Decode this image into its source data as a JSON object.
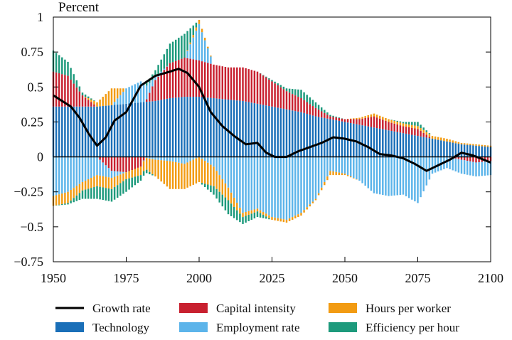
{
  "chart_data": {
    "type": "bar",
    "title": "",
    "ylabel": "Percent",
    "xlabel": "",
    "xlim": [
      1950,
      2100
    ],
    "ylim": [
      -0.75,
      1.0
    ],
    "x_ticks": [
      1950,
      1975,
      2000,
      2025,
      2050,
      2075,
      2100
    ],
    "y_ticks": [
      1,
      0.75,
      0.5,
      0.25,
      0,
      -0.25,
      -0.5,
      -0.75
    ],
    "x_tick_labels": [
      "1950",
      "1975",
      "2000",
      "2025",
      "2050",
      "2075",
      "2100"
    ],
    "y_tick_labels": [
      "1",
      "0.75",
      "0.5",
      "0.25",
      "0",
      "−0.25",
      "−0.5",
      "−0.75"
    ],
    "stacked": true,
    "legend_position": "bottom",
    "legend": [
      {
        "name": "Growth rate",
        "kind": "line",
        "color": "#000000"
      },
      {
        "name": "Capital intensity",
        "kind": "bar",
        "color": "#c8202f"
      },
      {
        "name": "Hours per worker",
        "kind": "bar",
        "color": "#f29b12"
      },
      {
        "name": "Technology",
        "kind": "bar",
        "color": "#1a6fb8"
      },
      {
        "name": "Employment rate",
        "kind": "bar",
        "color": "#5cb4ea"
      },
      {
        "name": "Efficiency per hour",
        "kind": "bar",
        "color": "#1d9a7c"
      }
    ],
    "series_keys": {
      "technology": "Technology",
      "capital": "Capital intensity",
      "hours": "Hours per worker",
      "employment": "Employment rate",
      "efficiency": "Efficiency per hour",
      "growth": "Growth rate"
    },
    "x": [
      1950,
      1955,
      1960,
      1965,
      1970,
      1975,
      1980,
      1985,
      1990,
      1995,
      2000,
      2005,
      2010,
      2015,
      2020,
      2025,
      2030,
      2035,
      2040,
      2045,
      2050,
      2055,
      2060,
      2065,
      2070,
      2075,
      2080,
      2085,
      2090,
      2095,
      2100
    ],
    "technology": [
      0.36,
      0.36,
      0.36,
      0.36,
      0.37,
      0.38,
      0.39,
      0.4,
      0.42,
      0.43,
      0.43,
      0.42,
      0.41,
      0.4,
      0.38,
      0.36,
      0.34,
      0.32,
      0.29,
      0.27,
      0.25,
      0.23,
      0.21,
      0.19,
      0.17,
      0.15,
      0.13,
      0.11,
      0.09,
      0.08,
      0.07
    ],
    "capital": [
      0.25,
      0.22,
      0.08,
      0.0,
      -0.1,
      -0.11,
      -0.07,
      0.15,
      0.25,
      0.28,
      0.26,
      0.24,
      0.23,
      0.24,
      0.23,
      0.18,
      0.13,
      0.1,
      0.06,
      0.02,
      0.02,
      0.04,
      0.08,
      0.06,
      0.05,
      0.05,
      0.0,
      0.0,
      -0.02,
      -0.04,
      -0.03
    ],
    "hours_pos": [
      0,
      0,
      0,
      0.03,
      0.12,
      0.0,
      0,
      0,
      0,
      0,
      0.03,
      0,
      0,
      0,
      0,
      0,
      0,
      0,
      0,
      0,
      0,
      0.01,
      0.02,
      0.02,
      0.02,
      0.02,
      0.02,
      0.02,
      0.01,
      0.01,
      0.01
    ],
    "efficiency_pos": [
      0.15,
      0.1,
      0.02,
      0,
      0,
      0,
      0,
      0.05,
      0.14,
      0.17,
      0,
      0,
      0,
      0,
      0,
      0.01,
      0.02,
      0.06,
      0.04,
      0.01,
      0,
      0,
      0,
      0,
      0.01,
      0.03,
      0,
      0,
      0,
      0,
      0
    ],
    "employment_pos": [
      0,
      0,
      0,
      0,
      0,
      0.11,
      0.15,
      0.02,
      0,
      0,
      0.26,
      0,
      0,
      0,
      0,
      0,
      0,
      0,
      0,
      0,
      0,
      0,
      0,
      0,
      0,
      0,
      0,
      0,
      0,
      0,
      0
    ],
    "employment_neg": [
      -0.28,
      -0.25,
      -0.18,
      -0.13,
      -0.05,
      0,
      0,
      -0.02,
      -0.03,
      -0.05,
      0,
      -0.07,
      -0.22,
      -0.4,
      -0.37,
      -0.43,
      -0.45,
      -0.4,
      -0.3,
      -0.1,
      -0.12,
      -0.17,
      -0.26,
      -0.28,
      -0.27,
      -0.33,
      -0.12,
      -0.08,
      -0.1,
      -0.1,
      -0.1
    ],
    "hours_neg": [
      -0.07,
      -0.08,
      -0.06,
      -0.08,
      -0.08,
      -0.05,
      -0.06,
      -0.12,
      -0.2,
      -0.18,
      -0.18,
      -0.14,
      -0.09,
      -0.03,
      -0.02,
      -0.02,
      -0.02,
      -0.02,
      -0.01,
      -0.03,
      -0.01,
      0,
      0,
      0,
      0,
      0,
      0,
      0,
      0,
      0,
      0
    ],
    "efficiency_neg": [
      0,
      -0.01,
      -0.06,
      -0.09,
      -0.09,
      -0.09,
      -0.04,
      0,
      0,
      0,
      0,
      -0.06,
      -0.1,
      -0.05,
      -0.04,
      0,
      0,
      0,
      0,
      0,
      0,
      0,
      0,
      0,
      0,
      0,
      0,
      0,
      0,
      0,
      0
    ],
    "growth_x": [
      1950,
      1953,
      1956,
      1959,
      1962,
      1965,
      1968,
      1971,
      1975,
      1980,
      1985,
      1990,
      1993,
      1996,
      2000,
      2004,
      2008,
      2012,
      2016,
      2020,
      2023,
      2026,
      2030,
      2034,
      2038,
      2042,
      2046,
      2050,
      2054,
      2058,
      2062,
      2066,
      2070,
      2074,
      2078,
      2082,
      2086,
      2090,
      2094,
      2100
    ],
    "growth_y": [
      0.44,
      0.4,
      0.36,
      0.28,
      0.17,
      0.08,
      0.14,
      0.26,
      0.32,
      0.51,
      0.58,
      0.61,
      0.63,
      0.6,
      0.5,
      0.32,
      0.22,
      0.15,
      0.09,
      0.1,
      0.03,
      0.0,
      0.0,
      0.04,
      0.07,
      0.1,
      0.14,
      0.13,
      0.11,
      0.07,
      0.02,
      0.01,
      -0.01,
      -0.05,
      -0.1,
      -0.06,
      -0.02,
      0.03,
      0.01,
      -0.04
    ]
  }
}
